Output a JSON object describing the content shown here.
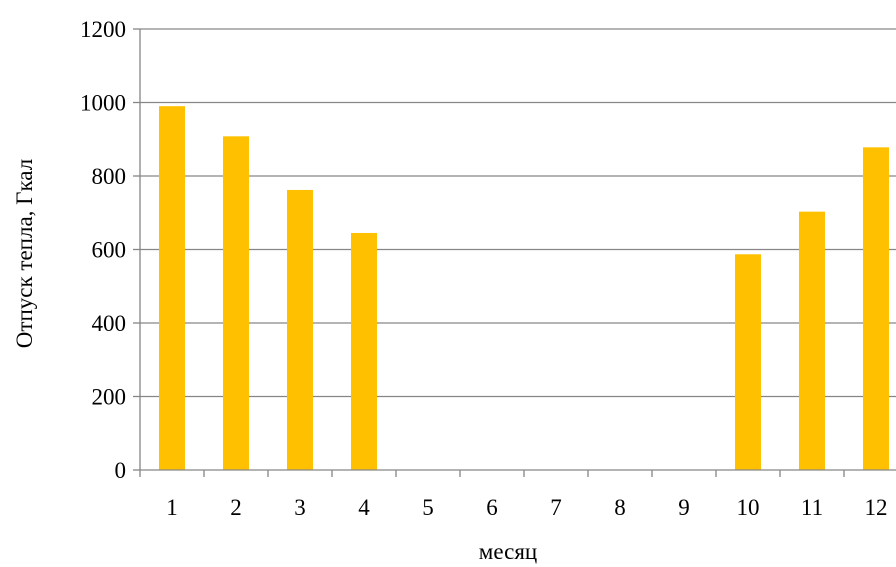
{
  "chart_data": {
    "type": "bar",
    "title": "",
    "xlabel": "месяц",
    "ylabel": "Отпуск тепла, Гкал",
    "categories": [
      "1",
      "2",
      "3",
      "4",
      "5",
      "6",
      "7",
      "8",
      "9",
      "10",
      "11",
      "12"
    ],
    "values": [
      990,
      908,
      762,
      645,
      0,
      0,
      0,
      0,
      0,
      587,
      703,
      878
    ],
    "ylim": [
      0,
      1200
    ],
    "yticks": [
      0,
      200,
      400,
      600,
      800,
      1000,
      1200
    ],
    "ytick_labels": [
      "0",
      "200",
      "400",
      "600",
      "800",
      "1000",
      "1200"
    ],
    "grid": true,
    "legend": "none",
    "bar_color": "#FFC000",
    "grid_color": "#868686"
  }
}
